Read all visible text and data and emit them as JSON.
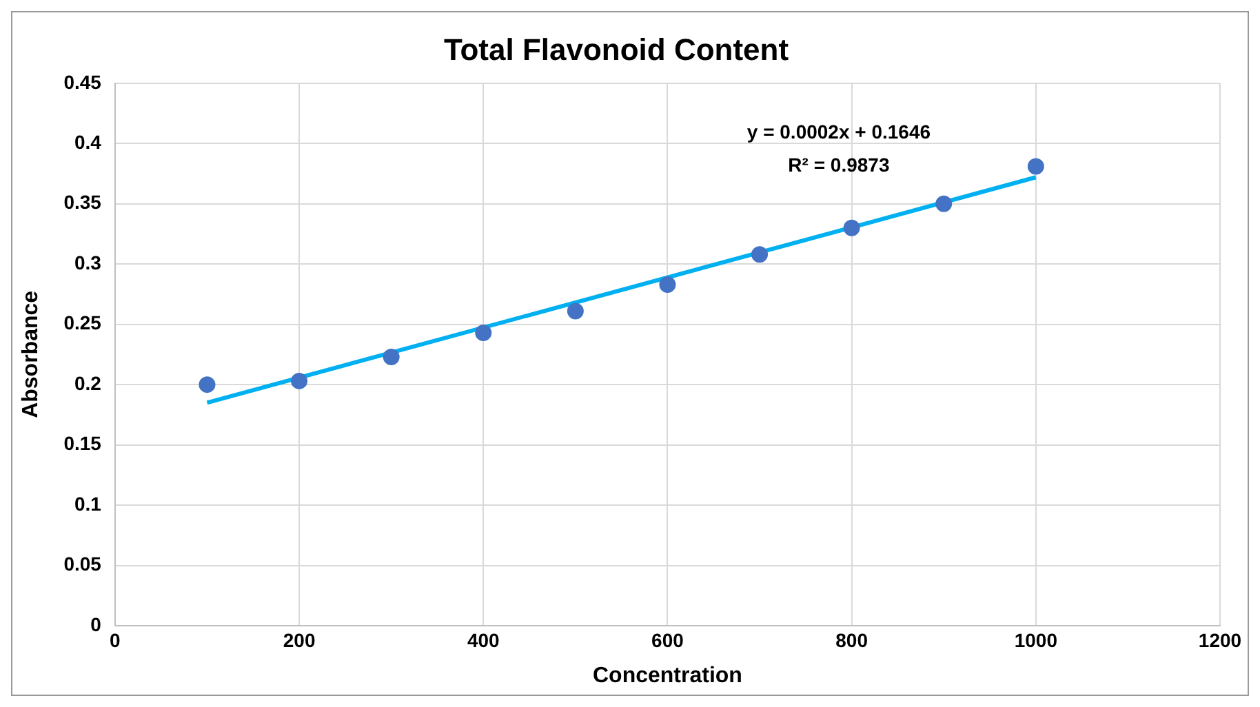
{
  "chart_data": {
    "type": "scatter",
    "title": "Total Flavonoid Content",
    "xlabel": "Concentration",
    "ylabel": "Absorbance",
    "annotations": [
      "y = 0.0002x + 0.1646",
      "R² = 0.9873"
    ],
    "x": [
      100,
      200,
      300,
      400,
      500,
      600,
      700,
      800,
      900,
      1000
    ],
    "series": [
      {
        "type": "scatter",
        "color": "#4472c4",
        "values": [
          0.2,
          0.203,
          0.223,
          0.243,
          0.261,
          0.283,
          0.308,
          0.33,
          0.35,
          0.381
        ],
        "marker": "circle"
      },
      {
        "type": "line",
        "color": "#00b0f0",
        "x": [
          100,
          1000
        ],
        "values": [
          0.185,
          0.372
        ],
        "marker": "none"
      }
    ],
    "xlim": [
      0,
      1200
    ],
    "xticks": [
      0,
      200,
      400,
      600,
      800,
      1000,
      1200
    ],
    "ylim": [
      0,
      0.45
    ],
    "yticks": [
      0,
      0.05,
      0.1,
      0.15,
      0.2,
      0.25,
      0.3,
      0.35,
      0.4,
      0.45
    ],
    "grid": true,
    "legend": false
  }
}
